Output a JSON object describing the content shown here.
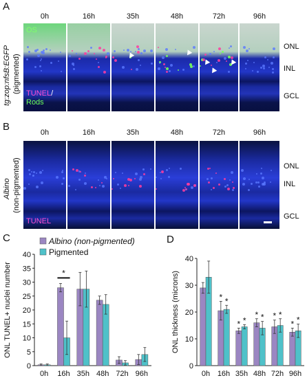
{
  "panel_a": {
    "letter": "A",
    "times": [
      "0h",
      "16h",
      "35h",
      "48h",
      "72h",
      "96h"
    ],
    "ylabel_line1": "tg:zop:nfsB:EGFP",
    "ylabel_line2": "(pigmented)",
    "inset_os": "OS",
    "inset_tunel": "TUNEL",
    "inset_slash": "/",
    "inset_rods": "Rods",
    "layers": [
      "ONL",
      "INL",
      "GCL"
    ]
  },
  "panel_b": {
    "letter": "B",
    "times": [
      "0h",
      "16h",
      "35h",
      "48h",
      "72h",
      "96h"
    ],
    "ylabel_line1": "Albino",
    "ylabel_line2": "(non-pigmented)",
    "inset_tunel": "TUNEL",
    "layers": [
      "ONL",
      "INL",
      "GCL"
    ]
  },
  "chart_data": [
    {
      "panel": "C",
      "type": "bar",
      "categories": [
        "0h",
        "16h",
        "35h",
        "48h",
        "72h",
        "96h"
      ],
      "ylabel": "ONL TUNEL+ nuclei number",
      "ylim": [
        0,
        40
      ],
      "yticks": [
        0,
        5,
        10,
        15,
        20,
        25,
        30,
        35,
        40
      ],
      "series": [
        {
          "name": "Albino (non-pigmented)",
          "color": "#9b86c2",
          "values": [
            0.3,
            28,
            27.5,
            23.5,
            2,
            2.2
          ],
          "errors": [
            0.3,
            1.5,
            6,
            1.5,
            1.2,
            1.8
          ]
        },
        {
          "name": "Pigmented",
          "color": "#4fc1c9",
          "values": [
            0.3,
            10,
            27.5,
            22,
            1,
            4
          ],
          "errors": [
            0.3,
            6,
            6.5,
            3.5,
            0.8,
            2.5
          ]
        }
      ],
      "annotations": [
        {
          "category": "16h",
          "text": "*"
        }
      ]
    },
    {
      "panel": "D",
      "type": "bar",
      "categories": [
        "0h",
        "16h",
        "35h",
        "48h",
        "72h",
        "96h"
      ],
      "ylabel": "ONL thickness (microns)",
      "ylim": [
        0,
        40
      ],
      "yticks": [
        0,
        10,
        20,
        30,
        40
      ],
      "series": [
        {
          "name": "Albino (non-pigmented)",
          "color": "#9b86c2",
          "values": [
            29,
            20.5,
            13,
            16,
            14.5,
            12.5
          ],
          "errors": [
            2,
            3.5,
            1,
            1.5,
            2.5,
            1.5
          ]
        },
        {
          "name": "Pigmented",
          "color": "#4fc1c9",
          "values": [
            33,
            21,
            14.5,
            14,
            15,
            13
          ],
          "errors": [
            6,
            1.5,
            0.8,
            2.5,
            2.5,
            2.5
          ]
        }
      ],
      "stars": [
        "*",
        "*"
      ]
    }
  ]
}
